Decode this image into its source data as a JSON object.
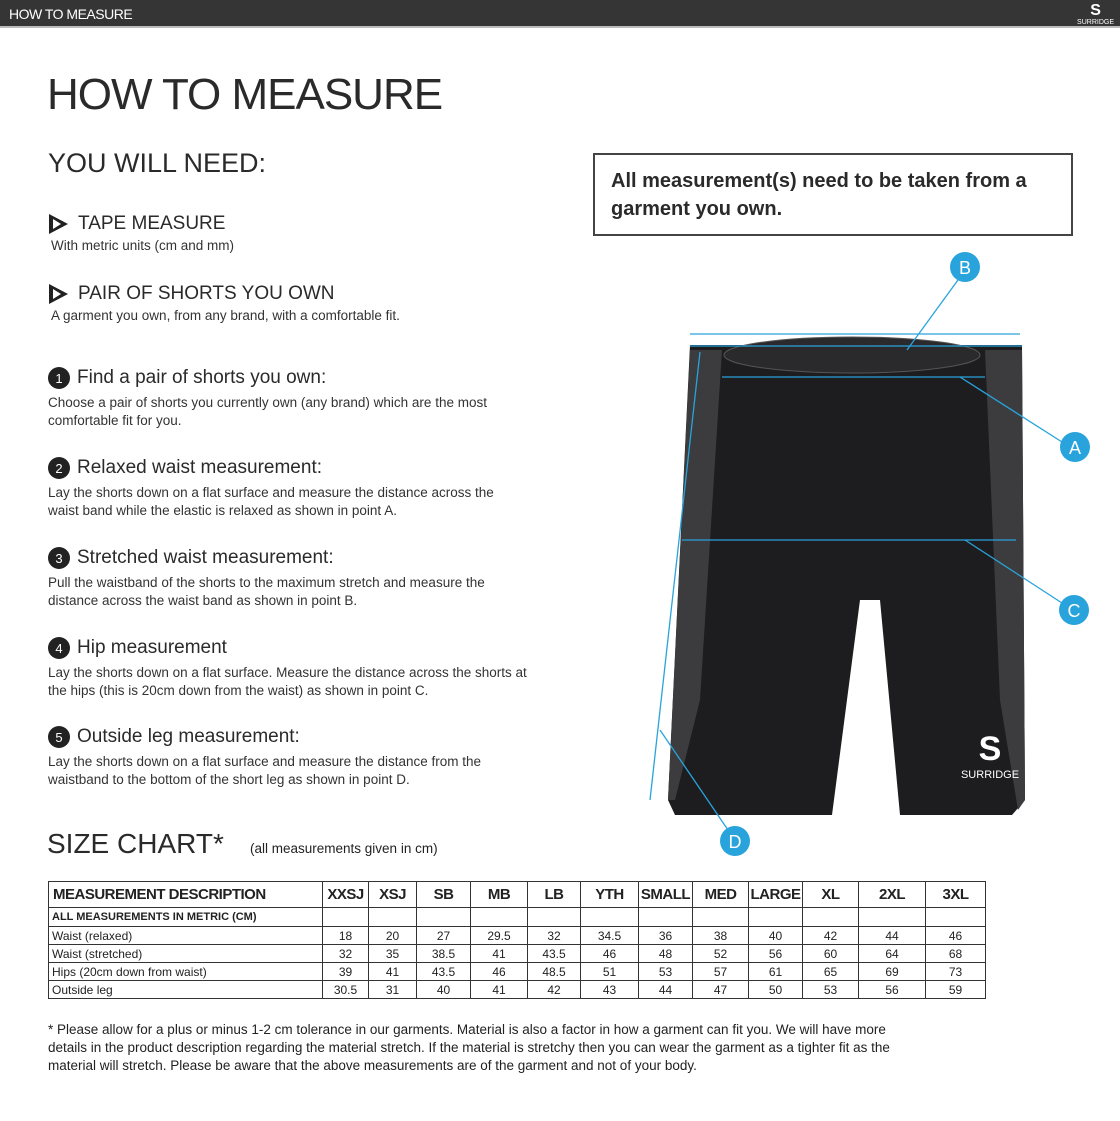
{
  "header": {
    "title": "HOW TO MEASURE",
    "logo_text": "SURRIDGE"
  },
  "page_title": "HOW TO MEASURE",
  "you_will_need": {
    "heading": "YOU WILL NEED:",
    "items": [
      {
        "title": "TAPE MEASURE",
        "desc": "With metric units (cm and mm)"
      },
      {
        "title": "PAIR OF SHORTS YOU OWN",
        "desc": "A garment you own, from any brand, with a comfortable fit."
      }
    ]
  },
  "steps": [
    {
      "num": "1",
      "title": "Find a pair of shorts you own:",
      "desc": "Choose a pair of shorts you currently own (any brand) which are the most comfortable fit for you."
    },
    {
      "num": "2",
      "title": "Relaxed waist measurement:",
      "desc": "Lay the shorts down on a flat surface and measure the distance across the waist band while the elastic is relaxed as shown in point A."
    },
    {
      "num": "3",
      "title": "Stretched waist measurement:",
      "desc": "Pull the waistband of the shorts to the maximum stretch and measure the distance across the waist band as shown in point B."
    },
    {
      "num": "4",
      "title": "Hip measurement",
      "desc": "Lay the shorts down on a flat surface. Measure the distance across the shorts at the hips (this is 20cm down from the waist)  as shown in point C."
    },
    {
      "num": "5",
      "title": "Outside leg measurement:",
      "desc": "Lay the shorts down on a flat surface and measure the distance from the waistband to the bottom of the short leg as shown in point D."
    }
  ],
  "note": "All measurement(s) need to be taken from a garment you own.",
  "diagram": {
    "labels": [
      "A",
      "B",
      "C",
      "D"
    ],
    "garment_logo": "SURRIDGE",
    "accent": "#29a3dc"
  },
  "size_chart": {
    "heading": "SIZE CHART*",
    "unit_note": "(all measurements given in cm)",
    "header": [
      "MEASUREMENT DESCRIPTION",
      "XXSJ",
      "XSJ",
      "SB",
      "MB",
      "LB",
      "YTH",
      "SMALL",
      "MED",
      "LARGE",
      "XL",
      "2XL",
      "3XL"
    ],
    "subheader": "ALL MEASUREMENTS IN METRIC (CM)",
    "rows": [
      {
        "label": "Waist (relaxed)",
        "values": [
          "18",
          "20",
          "27",
          "29.5",
          "32",
          "34.5",
          "36",
          "38",
          "40",
          "42",
          "44",
          "46"
        ]
      },
      {
        "label": "Waist (stretched)",
        "values": [
          "32",
          "35",
          "38.5",
          "41",
          "43.5",
          "46",
          "48",
          "52",
          "56",
          "60",
          "64",
          "68"
        ]
      },
      {
        "label": "Hips (20cm down from waist)",
        "values": [
          "39",
          "41",
          "43.5",
          "46",
          "48.5",
          "51",
          "53",
          "57",
          "61",
          "65",
          "69",
          "73"
        ]
      },
      {
        "label": "Outside leg",
        "values": [
          "30.5",
          "31",
          "40",
          "41",
          "42",
          "43",
          "44",
          "47",
          "50",
          "53",
          "56",
          "59"
        ]
      }
    ]
  },
  "footnote": "* Please allow for a plus or minus 1-2 cm tolerance in our garments. Material is also a factor in how a garment can fit you. We will have more details in the product description regarding the material stretch.  If the material is stretchy then you can wear the garment as a tighter fit as the material will stretch.  Please be aware that the above measurements are of the garment and not of your body."
}
